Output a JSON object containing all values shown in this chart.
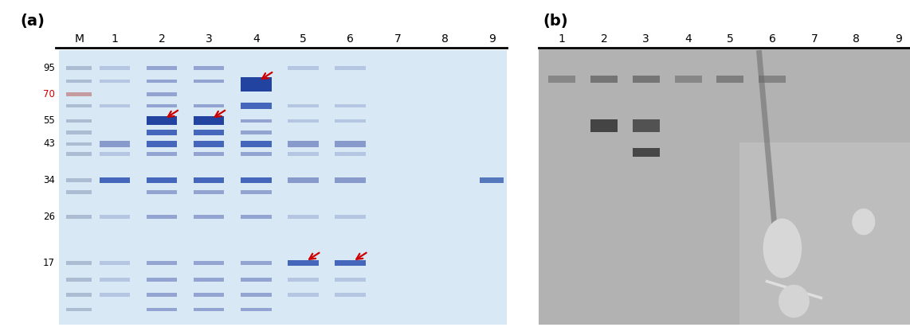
{
  "panel_a_label": "(a)",
  "panel_b_label": "(b)",
  "panel_a_lane_labels": [
    "M",
    "1",
    "2",
    "3",
    "4",
    "5",
    "6",
    "7",
    "8",
    "9"
  ],
  "panel_b_lane_labels": [
    "1",
    "2",
    "3",
    "4",
    "5",
    "6",
    "7",
    "8",
    "9"
  ],
  "mw_markers": [
    "95",
    "70",
    "55",
    "43",
    "34",
    "26",
    "17"
  ],
  "mw_70_color": "#cc0000",
  "arrow_color": "#cc0000",
  "gel_bg_color": "#d8e8f4",
  "wb_bg_color": "#aeaeae",
  "figure_width": 11.42,
  "figure_height": 4.16,
  "font_size_labels": 10,
  "font_size_mw": 8.5
}
